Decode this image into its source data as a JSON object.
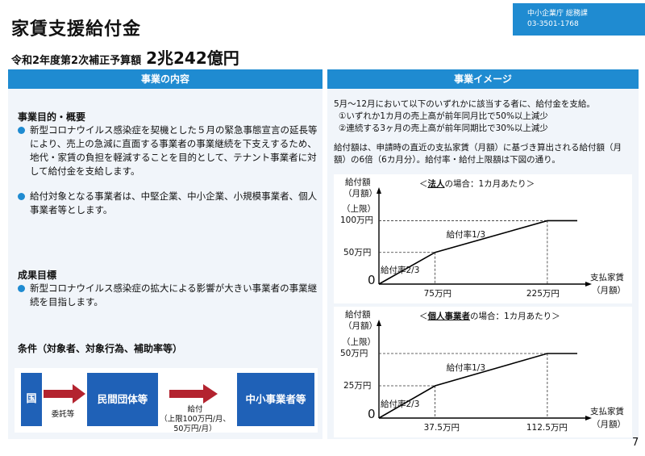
{
  "header": {
    "title": "家賃支援給付金",
    "subtitle": "令和2年度第2次補正予算額",
    "budget_amount": "2兆242億円",
    "agency_name": "中小企業庁 総務課",
    "agency_phone": "03-3501-1768"
  },
  "left_panel": {
    "header": "事業の内容",
    "purpose_title": "事業目的・概要",
    "purpose_bullets": [
      "新型コロナウイルス感染症を契機とした５月の緊急事態宣言の延長等により、売上の急減に直面する事業者の事業継続を下支えするため、地代・家賃の負担を軽減することを目的として、テナント事業者に対して給付金を支給します。",
      "給付対象となる事業者は、中堅企業、中小企業、小規模事業者、個人事業者等とします。"
    ],
    "goal_title": "成果目標",
    "goal_bullets": [
      "新型コロナウイルス感染症の拡大による影響が大きい事業者の事業継続を目指します。"
    ],
    "conditions_title": "条件（対象者、対象行為、補助率等）",
    "flow": {
      "country": "国",
      "entrust": "委託等",
      "private_org": "民間団体等",
      "benefit": "給付",
      "limit": "（上限100万円/月、\n50万円/月）",
      "sme": "中小事業者等"
    }
  },
  "right_panel": {
    "header": "事業イメージ",
    "intro": "5月～12月において以下のいずれかに該当する者に、給付金を支給。",
    "cond1": "①いずれか1カ月の売上高が前年同月比で50%以上減少",
    "cond2": "②連続する3ヶ月の売上高が前年同期比で30%以上減少",
    "calc_text": "給付額は、申請時の直近の支払家賃（月額）に基づき算出される給付額（月額）の6倍（6カ月分）。給付率・給付上限額は下図の通り。"
  },
  "chart_data": [
    {
      "type": "line",
      "title_pre": "＜",
      "title_bold": "法人",
      "title_post": "の場合：1カ月あたり＞",
      "ylabel_1": "給付額",
      "ylabel_2": "（月額）",
      "xlabel_1": "支払家賃",
      "xlabel_2": "（月額）",
      "cap_label": "（上限）",
      "origin_label": "0",
      "x_ticks": [
        "75万円",
        "225万円"
      ],
      "y_ticks": [
        "50万円",
        "100万円"
      ],
      "rate_labels": [
        "給付率2/3",
        "給付率1/3"
      ],
      "x": [
        0,
        75,
        225,
        265
      ],
      "y": [
        0,
        50,
        100,
        100
      ],
      "xlim": [
        0,
        265
      ],
      "ylim": [
        0,
        140
      ]
    },
    {
      "type": "line",
      "title_pre": "＜",
      "title_bold": "個人事業者",
      "title_post": "の場合：1カ月あたり＞",
      "ylabel_1": "給付額",
      "ylabel_2": "（月額）",
      "xlabel_1": "支払家賃",
      "xlabel_2": "（月額）",
      "cap_label": "（上限）",
      "origin_label": "0",
      "x_ticks": [
        "37.5万円",
        "112.5万円"
      ],
      "y_ticks": [
        "25万円",
        "50万円"
      ],
      "rate_labels": [
        "給付率2/3",
        "給付率1/3"
      ],
      "x": [
        0,
        37.5,
        112.5,
        132.5
      ],
      "y": [
        0,
        25,
        50,
        50
      ],
      "xlim": [
        0,
        132.5
      ],
      "ylim": [
        0,
        70
      ]
    }
  ],
  "page_number": "7"
}
